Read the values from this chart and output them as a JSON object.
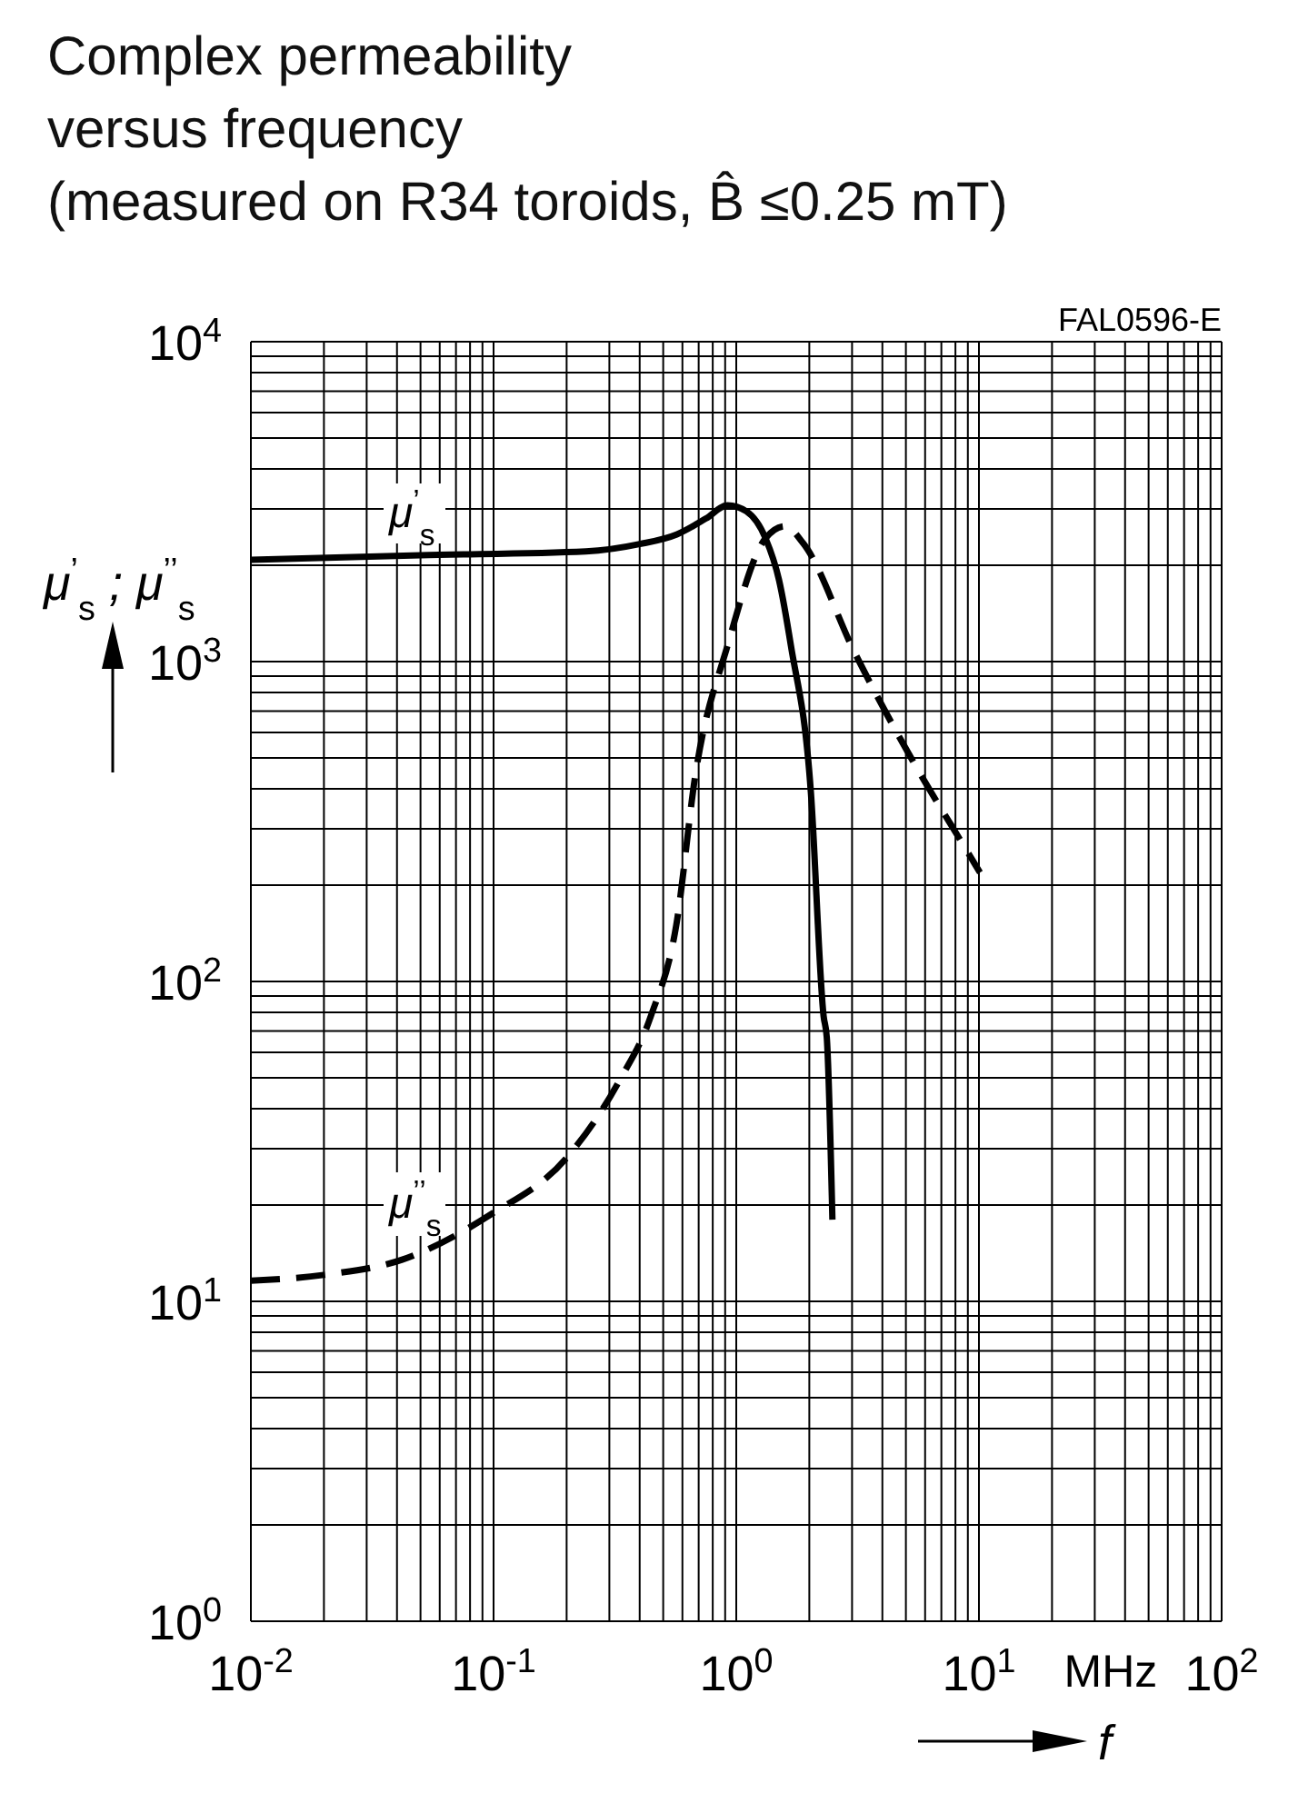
{
  "chart_data": {
    "type": "line",
    "title": "Complex permeability\nversus frequency\n(measured on R34 toroids, B̂ ≤0.25 mT)",
    "xlabel": "f",
    "ylabel": "μ$^{’}$$_{s}$ ; μ$^{’’}$$_{s}$",
    "annotations": [
      "FAL0596-E",
      "MHz"
    ],
    "log": "xy",
    "grid": true,
    "xlim": [
      0.01,
      100
    ],
    "ylim": [
      1,
      10000
    ],
    "xticks": [
      {
        "value": 0.01,
        "label": "10$^{-2}$"
      },
      {
        "value": 0.02,
        "label": null
      },
      {
        "value": 0.03,
        "label": null
      },
      {
        "value": 0.04,
        "label": null
      },
      {
        "value": 0.05,
        "label": null
      },
      {
        "value": 0.06,
        "label": null
      },
      {
        "value": 0.07,
        "label": null
      },
      {
        "value": 0.08,
        "label": null
      },
      {
        "value": 0.09,
        "label": null
      },
      {
        "value": 0.1,
        "label": "10$^{-1}$"
      },
      {
        "value": 0.2,
        "label": null
      },
      {
        "value": 0.3,
        "label": null
      },
      {
        "value": 0.4,
        "label": null
      },
      {
        "value": 0.5,
        "label": null
      },
      {
        "value": 0.6,
        "label": null
      },
      {
        "value": 0.7,
        "label": null
      },
      {
        "value": 0.8,
        "label": null
      },
      {
        "value": 0.9,
        "label": null
      },
      {
        "value": 1,
        "label": "10$^{0}$"
      },
      {
        "value": 2,
        "label": null
      },
      {
        "value": 3,
        "label": null
      },
      {
        "value": 4,
        "label": null
      },
      {
        "value": 5,
        "label": null
      },
      {
        "value": 6,
        "label": null
      },
      {
        "value": 7,
        "label": null
      },
      {
        "value": 8,
        "label": null
      },
      {
        "value": 9,
        "label": null
      },
      {
        "value": 10,
        "label": "10$^{1}$"
      },
      {
        "value": 20,
        "label": null
      },
      {
        "value": 30,
        "label": null
      },
      {
        "value": 40,
        "label": null
      },
      {
        "value": 50,
        "label": null
      },
      {
        "value": 60,
        "label": null
      },
      {
        "value": 70,
        "label": null
      },
      {
        "value": 80,
        "label": null
      },
      {
        "value": 90,
        "label": null
      },
      {
        "value": 100,
        "label": "10$^{2}$"
      }
    ],
    "yticks": [
      {
        "value": 1,
        "label": "10$^{0}$"
      },
      {
        "value": 2,
        "label": null
      },
      {
        "value": 3,
        "label": null
      },
      {
        "value": 4,
        "label": null
      },
      {
        "value": 5,
        "label": null
      },
      {
        "value": 6,
        "label": null
      },
      {
        "value": 7,
        "label": null
      },
      {
        "value": 8,
        "label": null
      },
      {
        "value": 9,
        "label": null
      },
      {
        "value": 10,
        "label": "10$^{1}$"
      },
      {
        "value": 20,
        "label": null
      },
      {
        "value": 30,
        "label": null
      },
      {
        "value": 40,
        "label": null
      },
      {
        "value": 50,
        "label": null
      },
      {
        "value": 60,
        "label": null
      },
      {
        "value": 70,
        "label": null
      },
      {
        "value": 80,
        "label": null
      },
      {
        "value": 90,
        "label": null
      },
      {
        "value": 100,
        "label": "10$^{2}$"
      },
      {
        "value": 200,
        "label": null
      },
      {
        "value": 300,
        "label": null
      },
      {
        "value": 400,
        "label": null
      },
      {
        "value": 500,
        "label": null
      },
      {
        "value": 600,
        "label": null
      },
      {
        "value": 700,
        "label": null
      },
      {
        "value": 800,
        "label": null
      },
      {
        "value": 900,
        "label": null
      },
      {
        "value": 1000,
        "label": "10$^{3}$"
      },
      {
        "value": 2000,
        "label": null
      },
      {
        "value": 3000,
        "label": null
      },
      {
        "value": 4000,
        "label": null
      },
      {
        "value": 5000,
        "label": null
      },
      {
        "value": 6000,
        "label": null
      },
      {
        "value": 7000,
        "label": null
      },
      {
        "value": 8000,
        "label": null
      },
      {
        "value": 9000,
        "label": null
      },
      {
        "value": 10000,
        "label": "10$^{4}$"
      }
    ],
    "series": [
      {
        "name": "μ$^{’}$$_{s}$",
        "color": "#000000",
        "line_style": "solid",
        "x": [
          0.01,
          0.05,
          0.24,
          0.4,
          0.57,
          0.75,
          0.92,
          1.1,
          1.32,
          1.5,
          1.68,
          2.03,
          2.29,
          2.36,
          2.49
        ],
        "values": [
          2080,
          2150,
          2210,
          2330,
          2500,
          2800,
          3080,
          2950,
          2430,
          1800,
          1120,
          390,
          78,
          67,
          18
        ]
      },
      {
        "name": "μ$^{’’}$$_{s}$",
        "color": "#000000",
        "line_style": "dashed",
        "x": [
          0.01,
          0.02,
          0.042,
          0.0975,
          0.2,
          0.329,
          0.445,
          0.566,
          0.68,
          0.92,
          1.32,
          1.59,
          1.89,
          3.07,
          5.33,
          9.18,
          10.1
        ],
        "values": [
          11.6,
          12.1,
          13.5,
          18.7,
          28.1,
          48.8,
          78,
          150,
          447,
          1120,
          2430,
          2650,
          2340,
          1070,
          490,
          247,
          219
        ]
      }
    ]
  }
}
